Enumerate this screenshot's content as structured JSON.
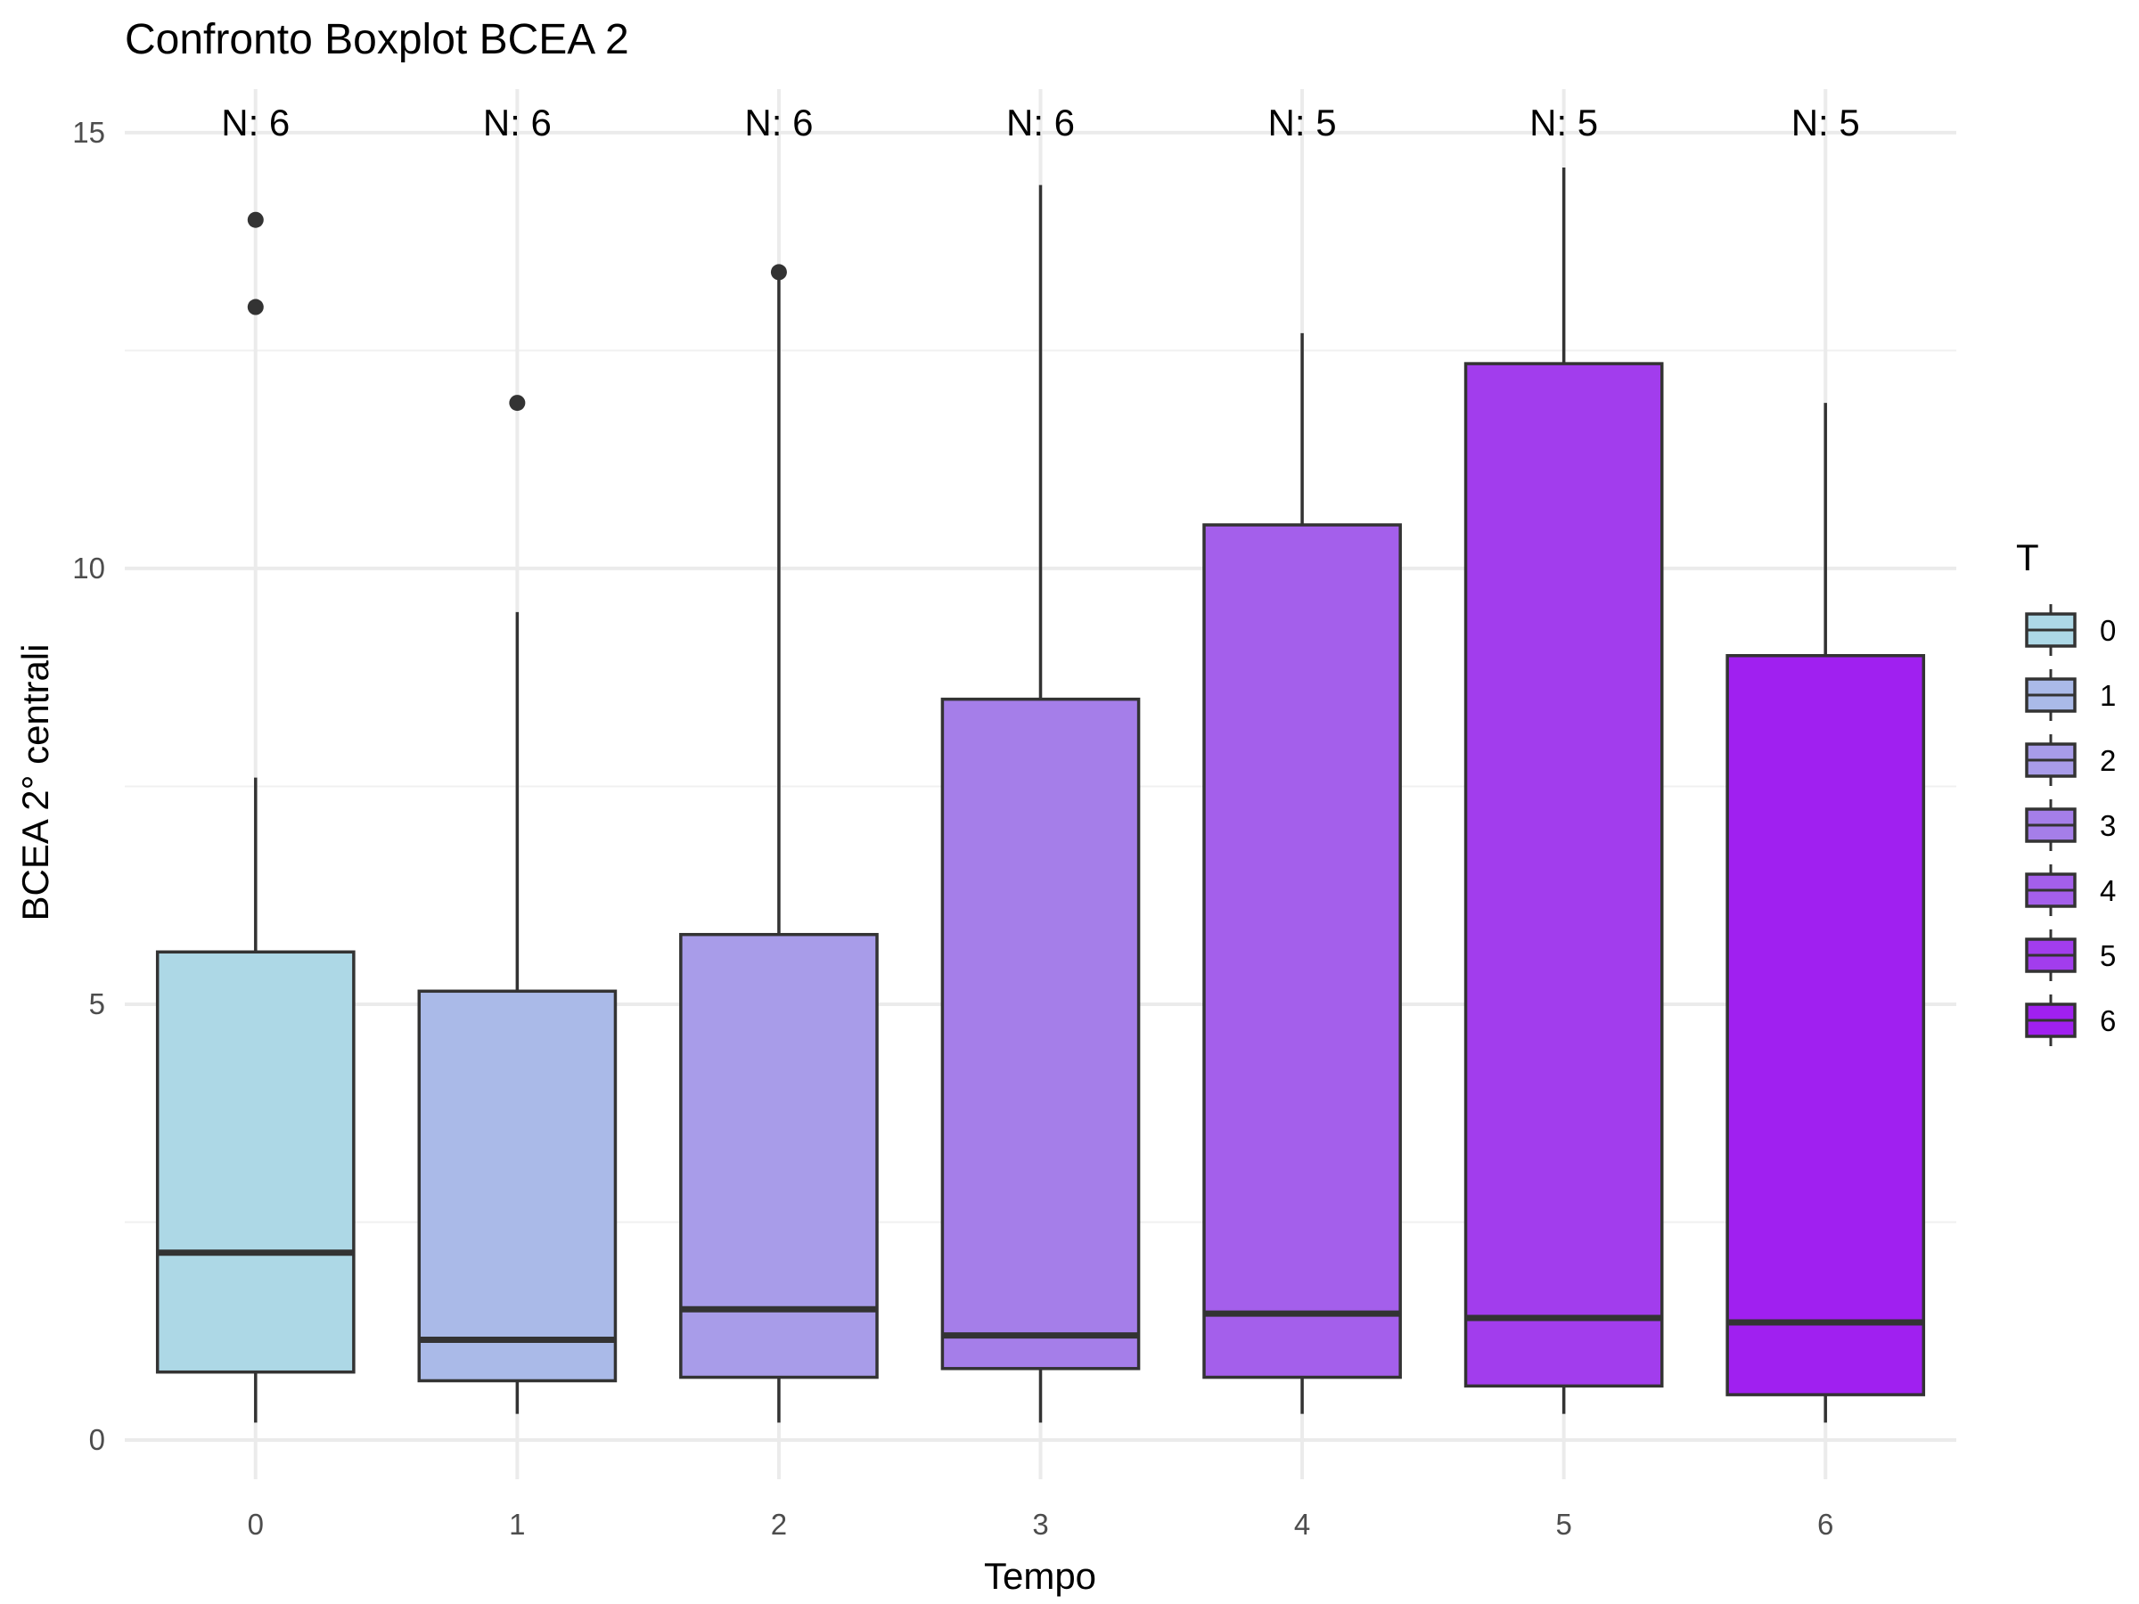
{
  "chart_data": {
    "type": "boxplot",
    "title": "Confronto Boxplot BCEA 2",
    "xlabel": "Tempo",
    "ylabel": "BCEA 2° centrali",
    "ylim": [
      -0.45,
      15.5
    ],
    "yticks": [
      0,
      5,
      10,
      15
    ],
    "grid": true,
    "legend": {
      "title": "T",
      "position": "right"
    },
    "categories": [
      "0",
      "1",
      "2",
      "3",
      "4",
      "5",
      "6"
    ],
    "boxes": [
      {
        "category": "0",
        "n_label": "N: 6",
        "whisker_low": 0.2,
        "q1": 0.78,
        "median": 2.15,
        "q3": 5.6,
        "whisker_high": 7.6,
        "outliers": [
          14.0,
          13.0
        ],
        "color": "#add8e6"
      },
      {
        "category": "1",
        "n_label": "N: 6",
        "whisker_low": 0.3,
        "q1": 0.68,
        "median": 1.15,
        "q3": 5.15,
        "whisker_high": 9.5,
        "outliers": [
          11.9
        ],
        "color": "#aabae8"
      },
      {
        "category": "2",
        "n_label": "N: 6",
        "whisker_low": 0.2,
        "q1": 0.72,
        "median": 1.5,
        "q3": 5.8,
        "whisker_high": 13.4,
        "outliers": [
          13.4
        ],
        "color": "#a89ce9"
      },
      {
        "category": "3",
        "n_label": "N: 6",
        "whisker_low": 0.2,
        "q1": 0.82,
        "median": 1.2,
        "q3": 8.5,
        "whisker_high": 14.4,
        "outliers": [],
        "color": "#a57ee9"
      },
      {
        "category": "4",
        "n_label": "N: 5",
        "whisker_low": 0.3,
        "q1": 0.72,
        "median": 1.45,
        "q3": 10.5,
        "whisker_high": 12.7,
        "outliers": [],
        "color": "#a45feb"
      },
      {
        "category": "5",
        "n_label": "N: 5",
        "whisker_low": 0.3,
        "q1": 0.62,
        "median": 1.4,
        "q3": 12.35,
        "whisker_high": 14.6,
        "outliers": [],
        "color": "#a23ded"
      },
      {
        "category": "6",
        "n_label": "N: 5",
        "whisker_low": 0.2,
        "q1": 0.52,
        "median": 1.35,
        "q3": 9.0,
        "whisker_high": 11.9,
        "outliers": [],
        "color": "#a020f0"
      }
    ]
  }
}
